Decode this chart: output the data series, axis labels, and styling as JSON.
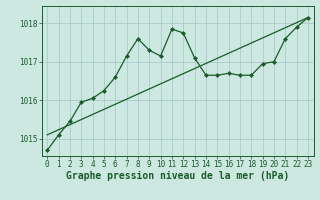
{
  "xlabel": "Graphe pression niveau de la mer (hPa)",
  "bg_color": "#cce8e0",
  "grid_color": "#aacccc",
  "line_color": "#1a5c2a",
  "hours": [
    0,
    1,
    2,
    3,
    4,
    5,
    6,
    7,
    8,
    9,
    10,
    11,
    12,
    13,
    14,
    15,
    16,
    17,
    18,
    19,
    20,
    21,
    22,
    23
  ],
  "pressure": [
    1014.7,
    1015.1,
    1015.45,
    1015.95,
    1016.05,
    1016.25,
    1016.6,
    1017.15,
    1017.6,
    1017.3,
    1017.15,
    1017.85,
    1017.75,
    1017.1,
    1016.65,
    1016.65,
    1016.7,
    1016.65,
    1016.65,
    1016.95,
    1017.0,
    1017.6,
    1017.9,
    1018.15
  ],
  "trend_x": [
    0,
    23
  ],
  "trend_y": [
    1015.1,
    1018.15
  ],
  "ylim_min": 1014.55,
  "ylim_max": 1018.45,
  "yticks": [
    1015,
    1016,
    1017,
    1018
  ],
  "xticks": [
    0,
    1,
    2,
    3,
    4,
    5,
    6,
    7,
    8,
    9,
    10,
    11,
    12,
    13,
    14,
    15,
    16,
    17,
    18,
    19,
    20,
    21,
    22,
    23
  ],
  "tick_fontsize": 5.5,
  "label_fontsize": 7,
  "marker": "D",
  "markersize": 2.0,
  "linewidth": 0.9,
  "trend_linewidth": 0.9
}
